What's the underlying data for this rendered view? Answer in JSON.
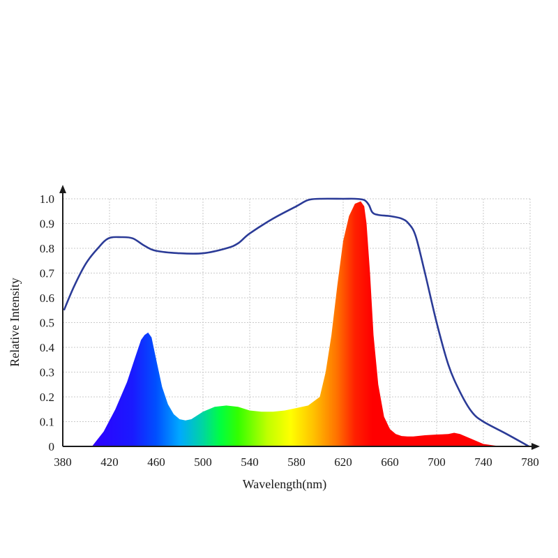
{
  "chart_data": {
    "type": "area",
    "title": "",
    "xlabel": "Wavelength(nm)",
    "ylabel": "Relative Intensity",
    "xlim": [
      380,
      780
    ],
    "ylim": [
      0,
      1.0
    ],
    "grid": true,
    "x_ticks": [
      380,
      420,
      460,
      500,
      540,
      580,
      620,
      660,
      700,
      740,
      780
    ],
    "y_ticks": [
      {
        "value": 0,
        "label": "0"
      },
      {
        "value": 0.1,
        "label": "0.1"
      },
      {
        "value": 0.2,
        "label": "0.2"
      },
      {
        "value": 0.3,
        "label": "0.3"
      },
      {
        "value": 0.4,
        "label": "0.4"
      },
      {
        "value": 0.5,
        "label": "0.5"
      },
      {
        "value": 0.6,
        "label": "0.6"
      },
      {
        "value": 0.7,
        "label": "0.7"
      },
      {
        "value": 0.8,
        "label": "0.8"
      },
      {
        "value": 0.9,
        "label": "0.9"
      },
      {
        "value": 1.0,
        "label": "1.0"
      }
    ],
    "series": [
      {
        "kind": "filled-spectrum",
        "fill": "rainbow-by-wavelength",
        "x": [
          405,
          415,
          425,
          435,
          442,
          447,
          450,
          453,
          456,
          460,
          465,
          470,
          475,
          480,
          485,
          490,
          500,
          510,
          520,
          530,
          540,
          550,
          560,
          570,
          580,
          590,
          600,
          605,
          610,
          615,
          620,
          625,
          630,
          635,
          638,
          640,
          643,
          646,
          650,
          655,
          660,
          665,
          670,
          675,
          680,
          690,
          700,
          710,
          715,
          720,
          730,
          740,
          750,
          760
        ],
        "y": [
          0.0,
          0.06,
          0.15,
          0.26,
          0.36,
          0.43,
          0.45,
          0.46,
          0.44,
          0.35,
          0.24,
          0.17,
          0.13,
          0.11,
          0.105,
          0.11,
          0.14,
          0.16,
          0.165,
          0.16,
          0.145,
          0.14,
          0.14,
          0.145,
          0.155,
          0.165,
          0.2,
          0.3,
          0.45,
          0.65,
          0.83,
          0.93,
          0.98,
          0.99,
          0.97,
          0.9,
          0.7,
          0.45,
          0.25,
          0.12,
          0.07,
          0.05,
          0.042,
          0.04,
          0.04,
          0.045,
          0.048,
          0.05,
          0.055,
          0.05,
          0.03,
          0.01,
          0.003,
          0.0
        ]
      },
      {
        "kind": "line",
        "color": "#2b3b97",
        "x": [
          381,
          390,
          400,
          410,
          419,
          430,
          440,
          450,
          460,
          480,
          500,
          520,
          530,
          540,
          560,
          580,
          590,
          600,
          620,
          630,
          638,
          642,
          645,
          650,
          660,
          670,
          676,
          682,
          690,
          700,
          710,
          720,
          730,
          740,
          760,
          779
        ],
        "y": [
          0.55,
          0.65,
          0.74,
          0.8,
          0.84,
          0.845,
          0.84,
          0.81,
          0.79,
          0.78,
          0.78,
          0.8,
          0.82,
          0.86,
          0.92,
          0.97,
          0.995,
          1.0,
          1.0,
          1.0,
          0.995,
          0.975,
          0.945,
          0.935,
          0.93,
          0.92,
          0.9,
          0.85,
          0.7,
          0.5,
          0.33,
          0.22,
          0.14,
          0.1,
          0.05,
          0.0
        ]
      }
    ]
  }
}
